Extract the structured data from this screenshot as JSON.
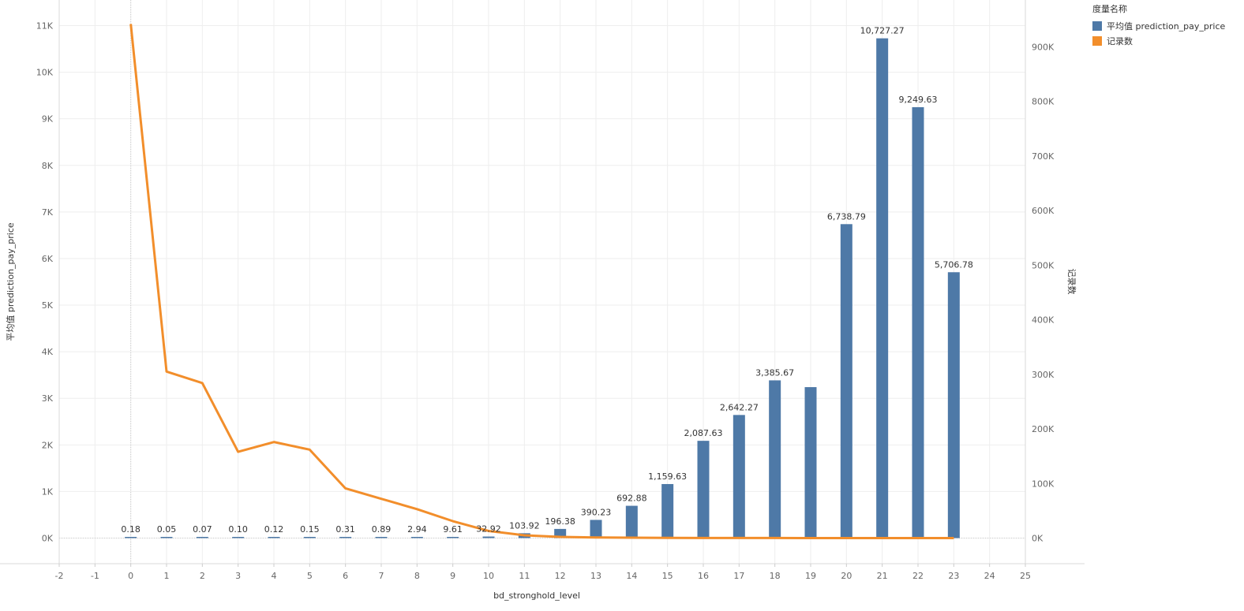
{
  "legend": {
    "title": "度量名称",
    "items": [
      {
        "label": "平均值 prediction_pay_price",
        "color": "#4e79a7"
      },
      {
        "label": "记录数",
        "color": "#f28e2b"
      }
    ]
  },
  "chart_data": {
    "type": "bar",
    "xlabel": "bd_stronghold_level",
    "ylabel": "平均值 prediction_pay_price",
    "y2label": "记录数",
    "xlim": [
      -2,
      25
    ],
    "x_ticks": [
      "-2",
      "-1",
      "0",
      "1",
      "2",
      "3",
      "4",
      "5",
      "6",
      "7",
      "8",
      "9",
      "10",
      "11",
      "12",
      "13",
      "14",
      "15",
      "16",
      "17",
      "18",
      "19",
      "20",
      "21",
      "22",
      "23",
      "24",
      "25"
    ],
    "ylim": [
      -550,
      11550
    ],
    "y_ticks": [
      0,
      1000,
      2000,
      3000,
      4000,
      5000,
      6000,
      7000,
      8000,
      9000,
      10000,
      11000
    ],
    "y_tick_labels": [
      "0K",
      "1K",
      "2K",
      "3K",
      "4K",
      "5K",
      "6K",
      "7K",
      "8K",
      "9K",
      "10K",
      "11K"
    ],
    "y2lim": [
      -47000,
      986000
    ],
    "y2_ticks": [
      0,
      100000,
      200000,
      300000,
      400000,
      500000,
      600000,
      700000,
      800000,
      900000
    ],
    "y2_tick_labels": [
      "0K",
      "100K",
      "200K",
      "300K",
      "400K",
      "500K",
      "600K",
      "700K",
      "800K",
      "900K"
    ],
    "grid": true,
    "legend_position": "top-right",
    "series": [
      {
        "name": "平均值 prediction_pay_price",
        "type": "bar",
        "axis": "left",
        "color": "#4e79a7",
        "x": [
          0,
          1,
          2,
          3,
          4,
          5,
          6,
          7,
          8,
          9,
          10,
          11,
          12,
          13,
          14,
          15,
          16,
          17,
          18,
          19,
          20,
          21,
          22,
          23
        ],
        "values": [
          0.18,
          0.05,
          0.07,
          0.1,
          0.12,
          0.15,
          0.31,
          0.89,
          2.94,
          9.61,
          32.92,
          103.92,
          196.38,
          390.23,
          692.88,
          1159.63,
          2087.63,
          2642.27,
          3385.67,
          3240,
          6738.79,
          10727.27,
          9249.63,
          5706.78
        ],
        "labels": [
          "0.18",
          "0.05",
          "0.07",
          "0.10",
          "0.12",
          "0.15",
          "0.31",
          "0.89",
          "2.94",
          "9.61",
          "32.92",
          "103.92",
          "196.38",
          "390.23",
          "692.88",
          "1,159.63",
          "2,087.63",
          "2,642.27",
          "3,385.67",
          "",
          "6,738.79",
          "10,727.27",
          "9,249.63",
          "5,706.78"
        ]
      },
      {
        "name": "记录数",
        "type": "line",
        "axis": "right",
        "color": "#f28e2b",
        "x": [
          0,
          1,
          2,
          3,
          4,
          5,
          6,
          7,
          8,
          9,
          10,
          11,
          12,
          13,
          14,
          15,
          16,
          17,
          18,
          19,
          20,
          21,
          22,
          23
        ],
        "values": [
          942000,
          305000,
          284000,
          158000,
          176000,
          162000,
          91000,
          72000,
          53000,
          31000,
          13000,
          5000,
          2200,
          1100,
          600,
          300,
          200,
          100,
          50,
          30,
          20,
          10,
          5,
          3
        ]
      }
    ]
  }
}
